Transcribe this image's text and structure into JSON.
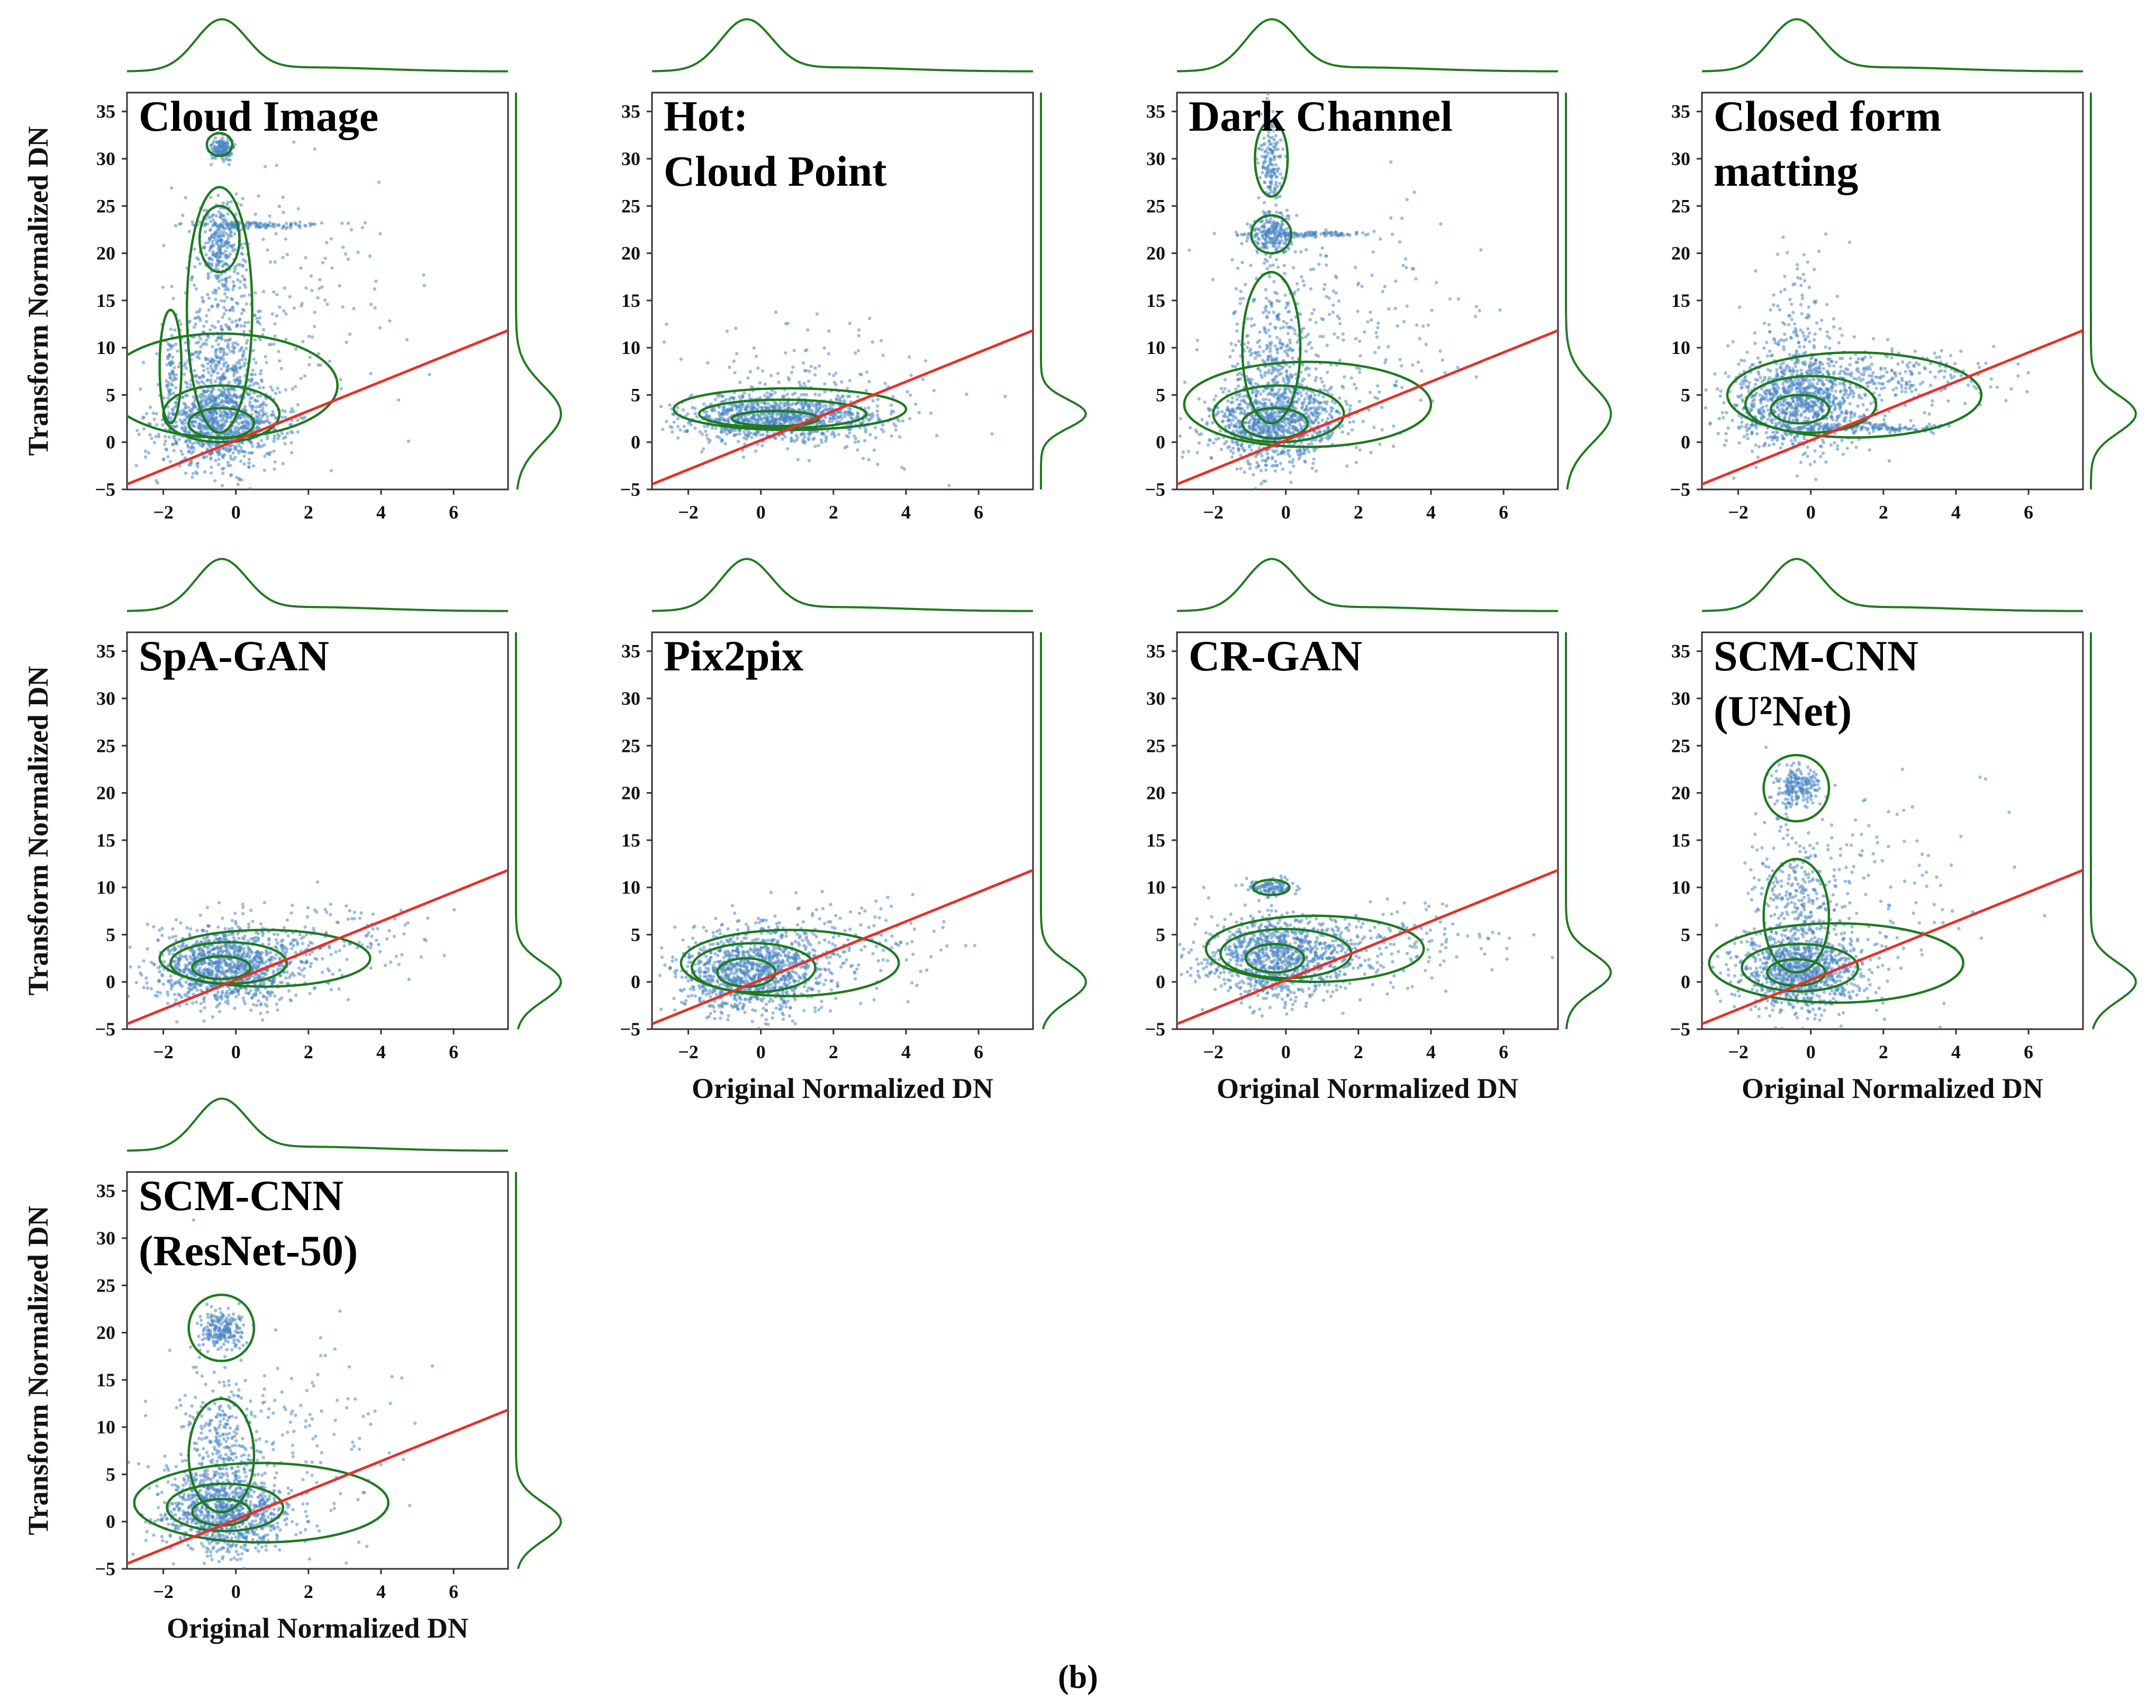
{
  "figure": {
    "caption_open": "(",
    "caption_letter": "b",
    "caption_close": ")"
  },
  "chart_data": {
    "type": "scatter",
    "description_axes": {
      "xlabel": "Original Normalized DN",
      "ylabel": "Transform Normalized DN",
      "xlim": [
        -3,
        7.5
      ],
      "ylim": [
        -5,
        37
      ],
      "xticks": [
        -2,
        0,
        2,
        4,
        6
      ],
      "yticks": [
        -5,
        0,
        5,
        10,
        15,
        20,
        25,
        30,
        35
      ],
      "xtick_labels": [
        "−2",
        "0",
        "2",
        "4",
        "6"
      ],
      "ytick_labels": [
        "−5",
        "0",
        "5",
        "10",
        "15",
        "20",
        "25",
        "30",
        "35"
      ]
    },
    "reference_line": {
      "slope": 1.55,
      "intercept": 0.2,
      "color": "#e8302a"
    },
    "colors": {
      "scatter": "#4a86c5",
      "kde": "#1f7a1f",
      "frame": "#333333"
    },
    "panels": [
      {
        "title_lines": [
          "Cloud Image"
        ],
        "show_xlabel": false,
        "show_ylabel": true,
        "clusters": [
          {
            "x": -0.4,
            "y": 2,
            "sx": 0.9,
            "sy": 2.2,
            "n": 900
          },
          {
            "x": -0.4,
            "y": 8,
            "sx": 0.6,
            "sy": 5,
            "n": 500
          },
          {
            "x": -0.4,
            "y": 21,
            "sx": 0.3,
            "sy": 2.2,
            "n": 250
          },
          {
            "x": -0.4,
            "y": 31,
            "sx": 0.15,
            "sy": 0.6,
            "n": 150
          },
          {
            "x": 1,
            "y": 15,
            "sx": 1.5,
            "sy": 7,
            "n": 200
          },
          {
            "x": 0.5,
            "y": 23,
            "sx": 1,
            "sy": 0.15,
            "n": 120
          },
          {
            "x": -1.8,
            "y": 7,
            "sx": 0.05,
            "sy": 3,
            "n": 60
          }
        ],
        "contours": [
          {
            "x": -0.4,
            "y": 2,
            "rx": 0.9,
            "ry": 1.6
          },
          {
            "x": -0.4,
            "y": 3,
            "rx": 1.6,
            "ry": 3
          },
          {
            "x": -0.4,
            "y": 6,
            "rx": 3.2,
            "ry": 5.5
          },
          {
            "x": -0.45,
            "y": 14,
            "rx": 0.9,
            "ry": 13
          },
          {
            "x": -0.45,
            "y": 21.5,
            "rx": 0.55,
            "ry": 3.5
          },
          {
            "x": -0.45,
            "y": 31.5,
            "rx": 0.35,
            "ry": 1.2
          },
          {
            "x": -1.8,
            "y": 8,
            "rx": 0.3,
            "ry": 6
          }
        ],
        "hist_top": {
          "peak": -0.4,
          "width": 0.7
        },
        "hist_right": {
          "peak": 3,
          "width": 3
        }
      },
      {
        "title_lines": [
          "Hot:",
          "Cloud Point"
        ],
        "show_xlabel": false,
        "show_ylabel": false,
        "clusters": [
          {
            "x": 0.5,
            "y": 2.5,
            "sx": 1.3,
            "sy": 1.2,
            "n": 1000
          },
          {
            "x": 1.5,
            "y": 5,
            "sx": 1.8,
            "sy": 3.5,
            "n": 200
          }
        ],
        "contours": [
          {
            "x": 0.4,
            "y": 2.5,
            "rx": 1.2,
            "ry": 0.8
          },
          {
            "x": 0.6,
            "y": 3,
            "rx": 2.3,
            "ry": 1.5
          },
          {
            "x": 0.8,
            "y": 3.5,
            "rx": 3.2,
            "ry": 2.2
          }
        ],
        "hist_top": {
          "peak": -0.4,
          "width": 0.7
        },
        "hist_right": {
          "peak": 3,
          "width": 1.5
        }
      },
      {
        "title_lines": [
          "Dark Channel"
        ],
        "show_xlabel": false,
        "show_ylabel": false,
        "clusters": [
          {
            "x": -0.3,
            "y": 2,
            "sx": 1,
            "sy": 2.2,
            "n": 900
          },
          {
            "x": -0.4,
            "y": 8,
            "sx": 0.6,
            "sy": 5,
            "n": 400
          },
          {
            "x": -0.4,
            "y": 22,
            "sx": 0.3,
            "sy": 1.2,
            "n": 200
          },
          {
            "x": -0.4,
            "y": 30,
            "sx": 0.15,
            "sy": 2.5,
            "n": 150
          },
          {
            "x": 1.5,
            "y": 12,
            "sx": 1.5,
            "sy": 6,
            "n": 200
          },
          {
            "x": 0.5,
            "y": 22,
            "sx": 1,
            "sy": 0.15,
            "n": 120
          }
        ],
        "contours": [
          {
            "x": -0.3,
            "y": 2,
            "rx": 0.9,
            "ry": 1.6
          },
          {
            "x": -0.2,
            "y": 3,
            "rx": 1.8,
            "ry": 3
          },
          {
            "x": 0.6,
            "y": 4,
            "rx": 3.4,
            "ry": 4.5
          },
          {
            "x": -0.4,
            "y": 10,
            "rx": 0.8,
            "ry": 8
          },
          {
            "x": -0.4,
            "y": 22,
            "rx": 0.55,
            "ry": 2
          },
          {
            "x": -0.4,
            "y": 30,
            "rx": 0.45,
            "ry": 4
          }
        ],
        "hist_top": {
          "peak": -0.4,
          "width": 0.7
        },
        "hist_right": {
          "peak": 3,
          "width": 3
        }
      },
      {
        "title_lines": [
          "Closed form",
          "matting"
        ],
        "show_xlabel": false,
        "show_ylabel": false,
        "clusters": [
          {
            "x": -0.3,
            "y": 4,
            "sx": 1,
            "sy": 2.5,
            "n": 900
          },
          {
            "x": -0.4,
            "y": 10,
            "sx": 0.6,
            "sy": 5,
            "n": 200
          },
          {
            "x": 1.5,
            "y": 1.5,
            "sx": 1.2,
            "sy": 0.2,
            "n": 150
          },
          {
            "x": 2,
            "y": 7,
            "sx": 1.8,
            "sy": 1.5,
            "n": 250
          }
        ],
        "contours": [
          {
            "x": -0.3,
            "y": 3.5,
            "rx": 0.8,
            "ry": 1.5
          },
          {
            "x": 0,
            "y": 4,
            "rx": 1.8,
            "ry": 3
          },
          {
            "x": 1.2,
            "y": 5,
            "rx": 3.5,
            "ry": 4.5
          }
        ],
        "hist_top": {
          "peak": -0.4,
          "width": 0.7
        },
        "hist_right": {
          "peak": 3,
          "width": 2
        }
      },
      {
        "title_lines": [
          "SpA-GAN"
        ],
        "show_xlabel": false,
        "show_ylabel": true,
        "clusters": [
          {
            "x": -0.3,
            "y": 1.5,
            "sx": 1,
            "sy": 2,
            "n": 1000
          },
          {
            "x": 1.5,
            "y": 4,
            "sx": 1.8,
            "sy": 2,
            "n": 250
          }
        ],
        "contours": [
          {
            "x": -0.4,
            "y": 1.5,
            "rx": 0.8,
            "ry": 1.2
          },
          {
            "x": -0.2,
            "y": 2,
            "rx": 1.6,
            "ry": 2.2
          },
          {
            "x": 0.8,
            "y": 2.5,
            "rx": 2.9,
            "ry": 3
          }
        ],
        "hist_top": {
          "peak": -0.4,
          "width": 0.7
        },
        "hist_right": {
          "peak": 0,
          "width": 2
        }
      },
      {
        "title_lines": [
          "Pix2pix"
        ],
        "show_xlabel": true,
        "show_ylabel": false,
        "clusters": [
          {
            "x": -0.3,
            "y": 1,
            "sx": 1,
            "sy": 2.2,
            "n": 1000
          },
          {
            "x": 1.5,
            "y": 3.5,
            "sx": 1.8,
            "sy": 2.5,
            "n": 250
          }
        ],
        "contours": [
          {
            "x": -0.4,
            "y": 1,
            "rx": 0.8,
            "ry": 1.5
          },
          {
            "x": -0.2,
            "y": 1.5,
            "rx": 1.7,
            "ry": 2.6
          },
          {
            "x": 0.8,
            "y": 2,
            "rx": 3,
            "ry": 3.5
          }
        ],
        "hist_top": {
          "peak": -0.4,
          "width": 0.7
        },
        "hist_right": {
          "peak": 0,
          "width": 2
        }
      },
      {
        "title_lines": [
          "CR-GAN"
        ],
        "show_xlabel": true,
        "show_ylabel": false,
        "clusters": [
          {
            "x": -0.3,
            "y": 2.5,
            "sx": 1,
            "sy": 2.2,
            "n": 900
          },
          {
            "x": -0.4,
            "y": 10,
            "sx": 0.3,
            "sy": 0.5,
            "n": 120
          },
          {
            "x": 2,
            "y": 4,
            "sx": 1.8,
            "sy": 2,
            "n": 250
          }
        ],
        "contours": [
          {
            "x": -0.3,
            "y": 2.5,
            "rx": 0.8,
            "ry": 1.5
          },
          {
            "x": 0,
            "y": 3,
            "rx": 1.8,
            "ry": 2.6
          },
          {
            "x": 0.8,
            "y": 3.5,
            "rx": 3,
            "ry": 3.5
          },
          {
            "x": -0.4,
            "y": 10,
            "rx": 0.5,
            "ry": 0.8
          }
        ],
        "hist_top": {
          "peak": -0.4,
          "width": 0.7
        },
        "hist_right": {
          "peak": 1,
          "width": 2
        }
      },
      {
        "title_lines": [
          "SCM-CNN",
          "(U²Net)"
        ],
        "show_xlabel": true,
        "show_ylabel": false,
        "clusters": [
          {
            "x": -0.3,
            "y": 1,
            "sx": 0.9,
            "sy": 2,
            "n": 900
          },
          {
            "x": -0.4,
            "y": 7,
            "sx": 0.6,
            "sy": 4.5,
            "n": 350
          },
          {
            "x": -0.4,
            "y": 20.5,
            "sx": 0.3,
            "sy": 1,
            "n": 200
          },
          {
            "x": 1.5,
            "y": 10,
            "sx": 1.8,
            "sy": 6,
            "n": 150
          }
        ],
        "contours": [
          {
            "x": -0.4,
            "y": 1,
            "rx": 0.8,
            "ry": 1.4
          },
          {
            "x": -0.3,
            "y": 1.5,
            "rx": 1.6,
            "ry": 2.5
          },
          {
            "x": 0.7,
            "y": 2,
            "rx": 3.5,
            "ry": 4.2
          },
          {
            "x": -0.4,
            "y": 7,
            "rx": 0.9,
            "ry": 6
          },
          {
            "x": -0.4,
            "y": 20.5,
            "rx": 0.9,
            "ry": 3.5
          }
        ],
        "hist_top": {
          "peak": -0.4,
          "width": 0.7
        },
        "hist_right": {
          "peak": 0,
          "width": 2
        }
      },
      {
        "title_lines": [
          "SCM-CNN",
          "(ResNet-50)"
        ],
        "show_xlabel": true,
        "show_ylabel": true,
        "clusters": [
          {
            "x": -0.3,
            "y": 1,
            "sx": 0.9,
            "sy": 2,
            "n": 900
          },
          {
            "x": -0.4,
            "y": 7,
            "sx": 0.6,
            "sy": 4.5,
            "n": 350
          },
          {
            "x": -0.4,
            "y": 20.5,
            "sx": 0.3,
            "sy": 1,
            "n": 200
          },
          {
            "x": 1.5,
            "y": 10,
            "sx": 1.8,
            "sy": 6,
            "n": 150
          }
        ],
        "contours": [
          {
            "x": -0.4,
            "y": 1,
            "rx": 0.8,
            "ry": 1.4
          },
          {
            "x": -0.3,
            "y": 1.5,
            "rx": 1.6,
            "ry": 2.5
          },
          {
            "x": 0.7,
            "y": 2,
            "rx": 3.5,
            "ry": 4.2
          },
          {
            "x": -0.4,
            "y": 7,
            "rx": 0.9,
            "ry": 6
          },
          {
            "x": -0.4,
            "y": 20.5,
            "rx": 0.9,
            "ry": 3.5
          }
        ],
        "hist_top": {
          "peak": -0.4,
          "width": 0.7
        },
        "hist_right": {
          "peak": 0,
          "width": 2
        }
      }
    ]
  }
}
